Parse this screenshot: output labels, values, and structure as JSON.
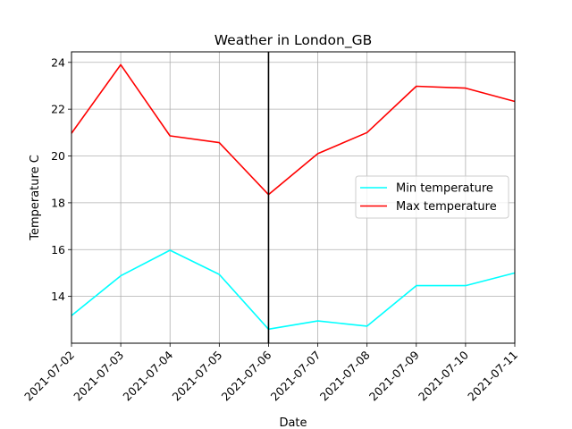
{
  "chart_data": {
    "type": "line",
    "title": "Weather in London_GB",
    "xlabel": "Date",
    "ylabel": "Temperature C",
    "x": [
      "2021-07-02",
      "2021-07-03",
      "2021-07-04",
      "2021-07-05",
      "2021-07-06",
      "2021-07-07",
      "2021-07-08",
      "2021-07-09",
      "2021-07-10",
      "2021-07-11"
    ],
    "ylim": [
      12.0,
      24.45
    ],
    "yticks": [
      14,
      16,
      18,
      20,
      22,
      24
    ],
    "grid": true,
    "legend": "center-right",
    "vline_at": "2021-07-06",
    "series": [
      {
        "name": "Min temperature",
        "color": "#00ffff",
        "values": [
          13.18,
          14.88,
          15.97,
          14.94,
          12.6,
          12.95,
          12.73,
          14.46,
          14.46,
          15.0
        ]
      },
      {
        "name": "Max temperature",
        "color": "#ff0000",
        "values": [
          20.97,
          23.9,
          20.86,
          20.57,
          18.35,
          20.1,
          21.0,
          22.98,
          22.9,
          22.33
        ]
      }
    ]
  }
}
